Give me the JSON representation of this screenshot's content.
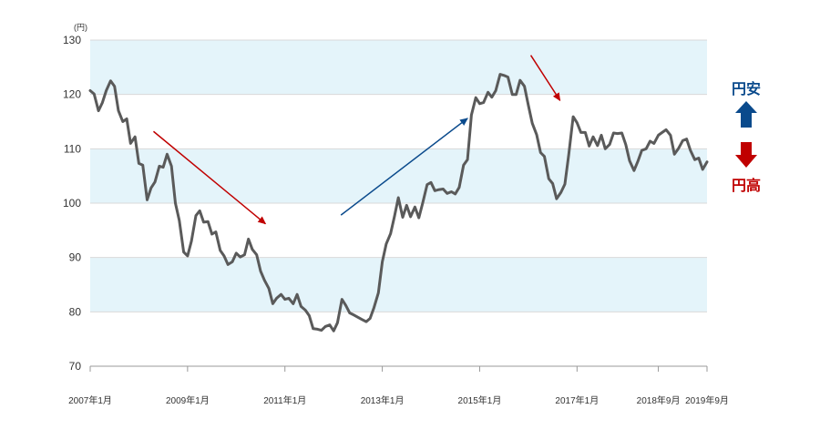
{
  "chart_data": {
    "type": "line",
    "unit_label": "(円)",
    "ylim": [
      70,
      130
    ],
    "yticks": [
      70,
      80,
      90,
      100,
      110,
      120,
      130
    ],
    "xlim": [
      2007.0,
      2019.67
    ],
    "xticks": [
      {
        "label": "2007年1月",
        "x": 2007.0
      },
      {
        "label": "2009年1月",
        "x": 2009.0
      },
      {
        "label": "2011年1月",
        "x": 2011.0
      },
      {
        "label": "2013年1月",
        "x": 2013.0
      },
      {
        "label": "2015年1月",
        "x": 2015.0
      },
      {
        "label": "2017年1月",
        "x": 2017.0
      },
      {
        "label": "2018年9月",
        "x": 2018.67
      },
      {
        "label": "2019年9月",
        "x": 2019.67
      }
    ],
    "bands": [
      [
        80,
        90
      ],
      [
        100,
        110
      ],
      [
        120,
        130
      ]
    ],
    "series": [
      {
        "name": "",
        "color": "#5a5a5a",
        "points": [
          [
            2007.0,
            120.7
          ],
          [
            2007.08,
            120.1
          ],
          [
            2007.17,
            117.0
          ],
          [
            2007.25,
            118.5
          ],
          [
            2007.33,
            120.7
          ],
          [
            2007.42,
            122.5
          ],
          [
            2007.5,
            121.5
          ],
          [
            2007.58,
            117.0
          ],
          [
            2007.67,
            115.0
          ],
          [
            2007.75,
            115.5
          ],
          [
            2007.83,
            111.0
          ],
          [
            2007.92,
            112.2
          ],
          [
            2008.0,
            107.3
          ],
          [
            2008.08,
            107.0
          ],
          [
            2008.17,
            100.6
          ],
          [
            2008.25,
            102.8
          ],
          [
            2008.33,
            103.9
          ],
          [
            2008.42,
            106.8
          ],
          [
            2008.5,
            106.6
          ],
          [
            2008.58,
            109.0
          ],
          [
            2008.67,
            106.8
          ],
          [
            2008.75,
            100.0
          ],
          [
            2008.83,
            96.8
          ],
          [
            2008.92,
            91.0
          ],
          [
            2009.0,
            90.3
          ],
          [
            2009.08,
            93.0
          ],
          [
            2009.17,
            97.7
          ],
          [
            2009.25,
            98.6
          ],
          [
            2009.33,
            96.5
          ],
          [
            2009.42,
            96.6
          ],
          [
            2009.5,
            94.3
          ],
          [
            2009.58,
            94.7
          ],
          [
            2009.67,
            91.3
          ],
          [
            2009.75,
            90.3
          ],
          [
            2009.83,
            88.7
          ],
          [
            2009.92,
            89.2
          ],
          [
            2010.0,
            90.8
          ],
          [
            2010.08,
            90.1
          ],
          [
            2010.17,
            90.5
          ],
          [
            2010.25,
            93.4
          ],
          [
            2010.33,
            91.5
          ],
          [
            2010.42,
            90.5
          ],
          [
            2010.5,
            87.5
          ],
          [
            2010.58,
            85.8
          ],
          [
            2010.67,
            84.3
          ],
          [
            2010.75,
            81.5
          ],
          [
            2010.83,
            82.5
          ],
          [
            2010.92,
            83.2
          ],
          [
            2011.0,
            82.3
          ],
          [
            2011.08,
            82.5
          ],
          [
            2011.17,
            81.5
          ],
          [
            2011.25,
            83.2
          ],
          [
            2011.33,
            81.0
          ],
          [
            2011.42,
            80.3
          ],
          [
            2011.5,
            79.3
          ],
          [
            2011.58,
            76.9
          ],
          [
            2011.67,
            76.8
          ],
          [
            2011.75,
            76.6
          ],
          [
            2011.83,
            77.3
          ],
          [
            2011.92,
            77.6
          ],
          [
            2012.0,
            76.5
          ],
          [
            2012.08,
            78.0
          ],
          [
            2012.17,
            82.3
          ],
          [
            2012.25,
            81.2
          ],
          [
            2012.33,
            79.8
          ],
          [
            2012.42,
            79.4
          ],
          [
            2012.5,
            79.0
          ],
          [
            2012.58,
            78.6
          ],
          [
            2012.67,
            78.2
          ],
          [
            2012.75,
            78.8
          ],
          [
            2012.83,
            80.8
          ],
          [
            2012.92,
            83.5
          ],
          [
            2013.0,
            89.2
          ],
          [
            2013.08,
            92.5
          ],
          [
            2013.17,
            94.4
          ],
          [
            2013.25,
            97.6
          ],
          [
            2013.33,
            101.0
          ],
          [
            2013.42,
            97.4
          ],
          [
            2013.5,
            99.6
          ],
          [
            2013.58,
            97.5
          ],
          [
            2013.67,
            99.3
          ],
          [
            2013.75,
            97.3
          ],
          [
            2013.83,
            100.0
          ],
          [
            2013.92,
            103.4
          ],
          [
            2014.0,
            103.8
          ],
          [
            2014.08,
            102.3
          ],
          [
            2014.17,
            102.5
          ],
          [
            2014.25,
            102.6
          ],
          [
            2014.33,
            101.8
          ],
          [
            2014.42,
            102.1
          ],
          [
            2014.5,
            101.7
          ],
          [
            2014.58,
            102.9
          ],
          [
            2014.67,
            107.0
          ],
          [
            2014.75,
            108.0
          ],
          [
            2014.83,
            116.2
          ],
          [
            2014.92,
            119.4
          ],
          [
            2015.0,
            118.3
          ],
          [
            2015.08,
            118.5
          ],
          [
            2015.17,
            120.4
          ],
          [
            2015.25,
            119.5
          ],
          [
            2015.33,
            120.7
          ],
          [
            2015.42,
            123.7
          ],
          [
            2015.5,
            123.5
          ],
          [
            2015.58,
            123.2
          ],
          [
            2015.67,
            120.0
          ],
          [
            2015.75,
            120.0
          ],
          [
            2015.83,
            122.6
          ],
          [
            2015.92,
            121.5
          ],
          [
            2016.0,
            118.0
          ],
          [
            2016.08,
            114.7
          ],
          [
            2016.17,
            112.6
          ],
          [
            2016.25,
            109.3
          ],
          [
            2016.33,
            108.6
          ],
          [
            2016.42,
            104.5
          ],
          [
            2016.5,
            103.6
          ],
          [
            2016.58,
            100.8
          ],
          [
            2016.67,
            102.0
          ],
          [
            2016.75,
            103.5
          ],
          [
            2016.83,
            108.9
          ],
          [
            2016.92,
            115.9
          ],
          [
            2017.0,
            114.8
          ],
          [
            2017.08,
            113.0
          ],
          [
            2017.17,
            113.0
          ],
          [
            2017.25,
            110.5
          ],
          [
            2017.33,
            112.2
          ],
          [
            2017.42,
            110.6
          ],
          [
            2017.5,
            112.5
          ],
          [
            2017.58,
            110.0
          ],
          [
            2017.67,
            110.8
          ],
          [
            2017.75,
            112.9
          ],
          [
            2017.83,
            112.8
          ],
          [
            2017.92,
            112.9
          ],
          [
            2018.0,
            110.8
          ],
          [
            2018.08,
            107.8
          ],
          [
            2018.17,
            106.0
          ],
          [
            2018.25,
            107.7
          ],
          [
            2018.33,
            109.7
          ],
          [
            2018.42,
            110.0
          ],
          [
            2018.5,
            111.4
          ],
          [
            2018.58,
            111.0
          ],
          [
            2018.67,
            112.5
          ],
          [
            2018.75,
            113.0
          ],
          [
            2018.83,
            113.5
          ],
          [
            2018.92,
            112.5
          ],
          [
            2019.0,
            109.0
          ],
          [
            2019.08,
            110.0
          ],
          [
            2019.17,
            111.5
          ],
          [
            2019.25,
            111.8
          ],
          [
            2019.33,
            109.7
          ],
          [
            2019.42,
            108.0
          ],
          [
            2019.5,
            108.3
          ],
          [
            2019.58,
            106.2
          ],
          [
            2019.67,
            107.6
          ]
        ]
      }
    ],
    "annotations": [
      {
        "type": "arrow",
        "color": "#c00000",
        "from": [
          2008.3,
          113.2
        ],
        "to": [
          2010.6,
          96.2
        ]
      },
      {
        "type": "arrow",
        "color": "#0a4a8c",
        "from": [
          2012.15,
          97.8
        ],
        "to": [
          2014.75,
          115.6
        ]
      },
      {
        "type": "arrow",
        "color": "#c00000",
        "from": [
          2016.05,
          127.2
        ],
        "to": [
          2016.65,
          118.9
        ]
      }
    ],
    "legend": {
      "up_label": "円安",
      "up_color": "#0a4a8c",
      "down_label": "円高",
      "down_color": "#c00000"
    }
  }
}
